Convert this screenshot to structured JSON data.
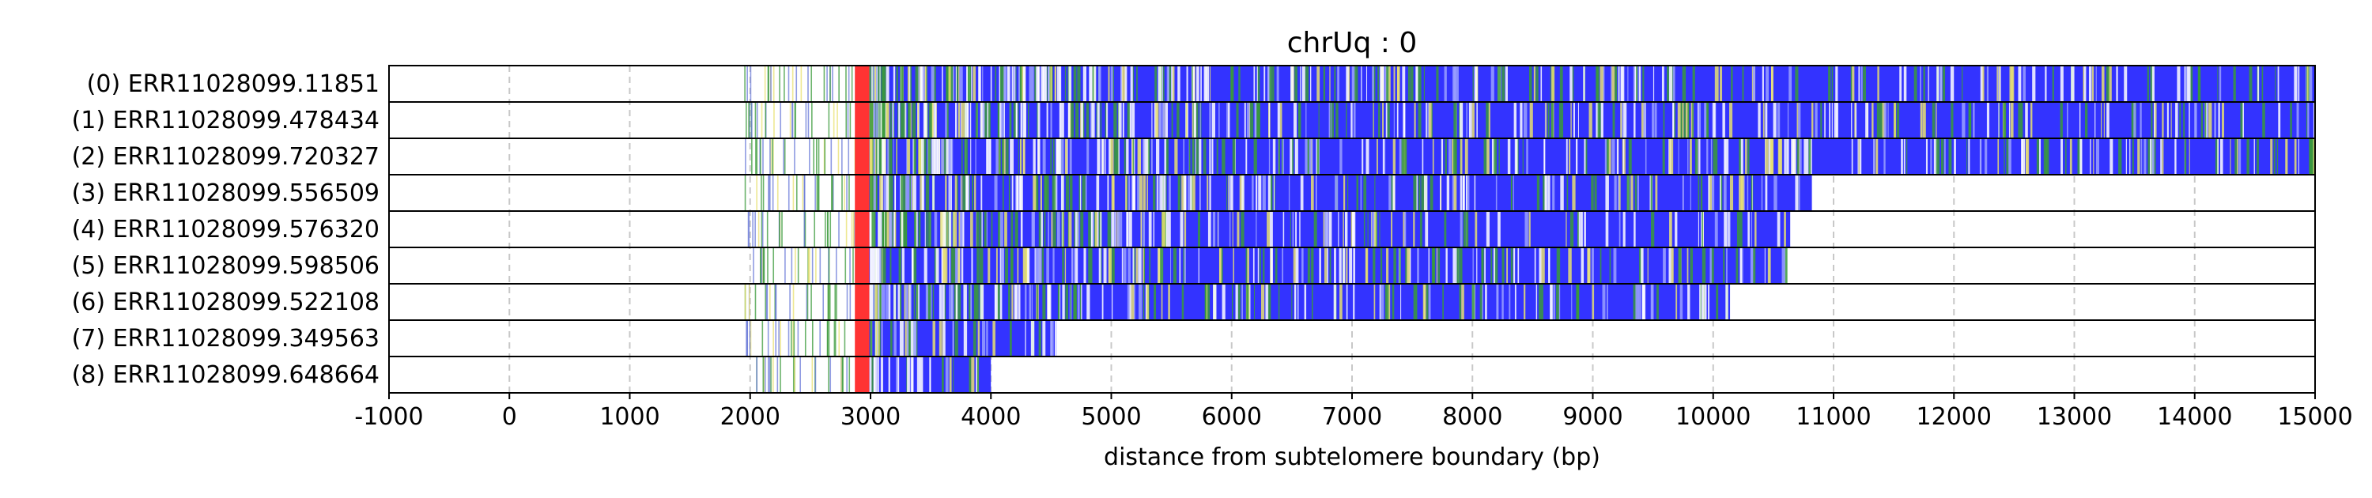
{
  "chart_data": {
    "type": "bar",
    "title": "chrUq : 0",
    "xlabel": "distance from subtelomere boundary (bp)",
    "ylabel": "",
    "xlim": [
      -1000,
      15000
    ],
    "xticks": [
      -1000,
      0,
      1000,
      2000,
      3000,
      4000,
      5000,
      6000,
      7000,
      8000,
      9000,
      10000,
      11000,
      12000,
      13000,
      14000,
      15000
    ],
    "xtick_labels": [
      "-1000",
      "0",
      "1000",
      "2000",
      "3000",
      "4000",
      "5000",
      "6000",
      "7000",
      "8000",
      "9000",
      "10000",
      "11000",
      "12000",
      "13000",
      "14000",
      "15000"
    ],
    "grid": "vertical dashed",
    "colors": {
      "repeat_blue": "#3333ff",
      "boundary_red": "#ff3333",
      "variant_green": "#3a9a3a",
      "variant_yellow": "#e8e070",
      "variant_white": "#ffffff",
      "sparse_blue": "#6a7ad8"
    },
    "reads": [
      {
        "label": "(0) ERR11028099.11851",
        "sparse_start": 1950,
        "boundary": 2870,
        "end": 15000
      },
      {
        "label": "(1) ERR11028099.478434",
        "sparse_start": 1950,
        "boundary": 2870,
        "end": 15000
      },
      {
        "label": "(2) ERR11028099.720327",
        "sparse_start": 1950,
        "boundary": 2870,
        "end": 15000
      },
      {
        "label": "(3) ERR11028099.556509",
        "sparse_start": 1950,
        "boundary": 2870,
        "end": 10820
      },
      {
        "label": "(4) ERR11028099.576320",
        "sparse_start": 1950,
        "boundary": 2870,
        "end": 10640
      },
      {
        "label": "(5) ERR11028099.598506",
        "sparse_start": 1950,
        "boundary": 2870,
        "end": 10590
      },
      {
        "label": "(6) ERR11028099.522108",
        "sparse_start": 1950,
        "boundary": 2870,
        "end": 10140
      },
      {
        "label": "(7) ERR11028099.349563",
        "sparse_start": 1950,
        "boundary": 2870,
        "end": 4550
      },
      {
        "label": "(8) ERR11028099.648664",
        "sparse_start": 1950,
        "boundary": 2870,
        "end": 4000
      }
    ]
  }
}
